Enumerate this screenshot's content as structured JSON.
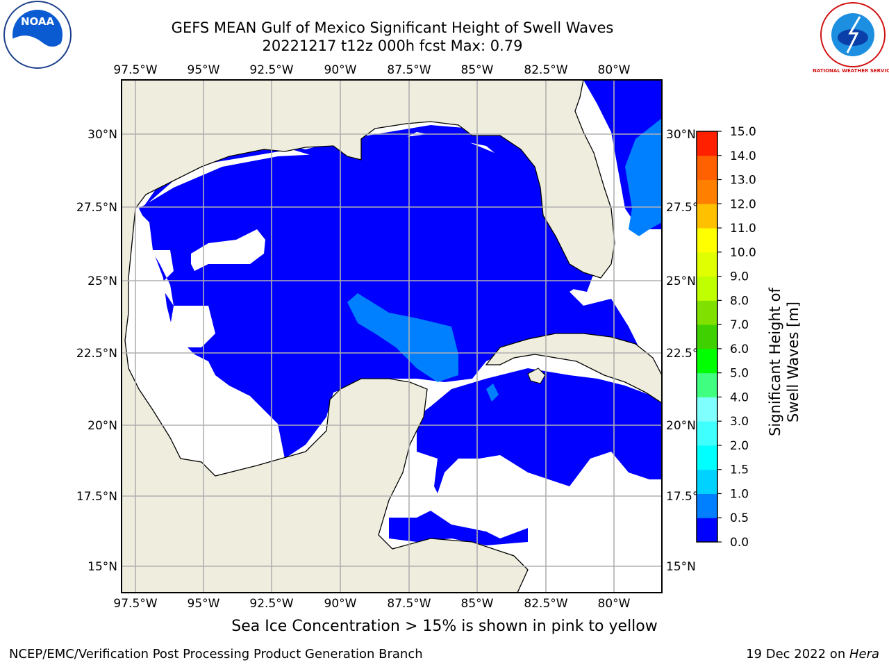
{
  "title_line1": "GEFS MEAN Gulf of Mexico Significant Height of Swell Waves",
  "title_line2": "20221217 t12z 000h fcst   Max: 0.79",
  "lon_labels": [
    "97.5°W",
    "95°W",
    "92.5°W",
    "90°W",
    "87.5°W",
    "85°W",
    "82.5°W",
    "80°W"
  ],
  "lat_labels_left": [
    "30°N",
    "27.5°N",
    "25°N",
    "22.5°N",
    "20°N",
    "17.5°N",
    "15°N"
  ],
  "lat_labels_right": [
    "30°N",
    "27.5°N",
    "25°N",
    "22.5°N",
    "20°N",
    "17.5°N",
    "15°N"
  ],
  "colorbar": {
    "label": "Significant Height of Swell Waves [m]",
    "ticks": [
      "15.0",
      "14.0",
      "13.0",
      "12.0",
      "11.0",
      "10.0",
      "9.0",
      "8.0",
      "7.0",
      "6.0",
      "5.0",
      "4.0",
      "3.0",
      "2.0",
      "1.5",
      "1.0",
      "0.5",
      "0.0"
    ],
    "colors_bottom_to_top": [
      "#0000ff",
      "#0080ff",
      "#00d2ff",
      "#00ffff",
      "#40ffff",
      "#80ffff",
      "#40ff80",
      "#00ff00",
      "#40d000",
      "#80e000",
      "#c0ff00",
      "#e0ff00",
      "#ffff00",
      "#ffc000",
      "#ff8000",
      "#ff6000",
      "#ff2000"
    ]
  },
  "sea_ice_note": "Sea Ice Concentration > 15% is shown in pink to yellow",
  "footer_left": "NCEP/EMC/Verification Post Processing Product Generation Branch",
  "footer_right_date": "19 Dec 2022 on ",
  "footer_right_host": "Hera",
  "logos": {
    "left": "NOAA",
    "right": "NATIONAL WEATHER SERVICE"
  },
  "map_colors": {
    "land": "#efedde",
    "ocean_low": "#0000ff",
    "ocean_mid": "#0080ff",
    "no_data": "#ffffff",
    "grid": "#b0b0b0"
  }
}
